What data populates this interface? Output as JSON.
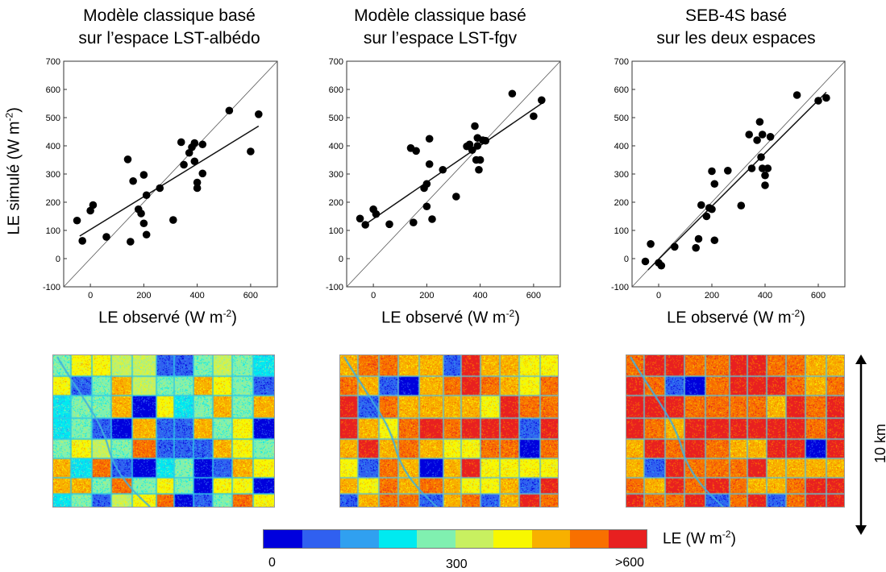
{
  "panels": [
    {
      "title_line1": "Modèle classique basé",
      "title_line2": "sur l’espace LST-albédo",
      "xlabel": "LE observé (W m",
      "xlabel_sup": "-2",
      "xlabel_end": ")"
    },
    {
      "title_line1": "Modèle classique basé",
      "title_line2": "sur l’espace LST-fgv",
      "xlabel": "LE observé (W m",
      "xlabel_sup": "-2",
      "xlabel_end": ")"
    },
    {
      "title_line1": "SEB-4S basé",
      "title_line2": "sur les deux espaces",
      "xlabel": "LE observé (W m",
      "xlabel_sup": "-2",
      "xlabel_end": ")"
    }
  ],
  "ylabel": "LE simulé (W m",
  "ylabel_sup": "-2",
  "ylabel_end": ")",
  "scale_label": "10 km",
  "colorbar": {
    "label": "LE (W m",
    "label_sup": "-2",
    "label_end": ")",
    "ticks": [
      "0",
      "300",
      ">600"
    ],
    "colors": [
      "#0000dd",
      "#3060f0",
      "#30a0f0",
      "#00eaf0",
      "#80f0b0",
      "#c8f060",
      "#f8f800",
      "#f8b000",
      "#f87000",
      "#e82020"
    ]
  },
  "chart_data": [
    {
      "type": "scatter",
      "title": "Modèle classique basé sur l’espace LST-albédo",
      "xlabel": "LE observé (W m-2)",
      "ylabel": "LE simulé (W m-2)",
      "xlim": [
        -100,
        700
      ],
      "ylim": [
        -100,
        700
      ],
      "xticks": [
        0,
        200,
        400,
        600
      ],
      "yticks": [
        -100,
        0,
        100,
        200,
        300,
        400,
        500,
        600,
        700
      ],
      "one_to_one_line": true,
      "regression": {
        "x0": -40,
        "y0": 80,
        "x1": 630,
        "y1": 470
      },
      "points": [
        [
          -50,
          135
        ],
        [
          -30,
          63
        ],
        [
          0,
          170
        ],
        [
          10,
          190
        ],
        [
          60,
          77
        ],
        [
          140,
          352
        ],
        [
          150,
          60
        ],
        [
          160,
          275
        ],
        [
          180,
          175
        ],
        [
          190,
          160
        ],
        [
          200,
          125
        ],
        [
          200,
          297
        ],
        [
          210,
          225
        ],
        [
          210,
          85
        ],
        [
          260,
          250
        ],
        [
          310,
          137
        ],
        [
          340,
          413
        ],
        [
          350,
          333
        ],
        [
          370,
          375
        ],
        [
          380,
          395
        ],
        [
          390,
          410
        ],
        [
          390,
          345
        ],
        [
          400,
          270
        ],
        [
          400,
          250
        ],
        [
          420,
          405
        ],
        [
          420,
          302
        ],
        [
          520,
          525
        ],
        [
          600,
          380
        ],
        [
          630,
          512
        ]
      ]
    },
    {
      "type": "scatter",
      "title": "Modèle classique basé sur l’espace LST-fgv",
      "xlabel": "LE observé (W m-2)",
      "ylabel": "LE simulé (W m-2)",
      "xlim": [
        -100,
        700
      ],
      "ylim": [
        -100,
        700
      ],
      "xticks": [
        0,
        200,
        400,
        600
      ],
      "yticks": [
        -100,
        0,
        100,
        200,
        300,
        400,
        500,
        600,
        700
      ],
      "one_to_one_line": true,
      "regression": {
        "x0": -40,
        "y0": 115,
        "x1": 630,
        "y1": 550
      },
      "points": [
        [
          -50,
          142
        ],
        [
          -30,
          120
        ],
        [
          0,
          175
        ],
        [
          10,
          158
        ],
        [
          60,
          122
        ],
        [
          140,
          392
        ],
        [
          150,
          128
        ],
        [
          160,
          382
        ],
        [
          190,
          250
        ],
        [
          200,
          265
        ],
        [
          200,
          185
        ],
        [
          210,
          425
        ],
        [
          210,
          335
        ],
        [
          220,
          140
        ],
        [
          260,
          315
        ],
        [
          310,
          220
        ],
        [
          350,
          398
        ],
        [
          360,
          405
        ],
        [
          370,
          385
        ],
        [
          380,
          470
        ],
        [
          385,
          350
        ],
        [
          390,
          428
        ],
        [
          390,
          400
        ],
        [
          395,
          315
        ],
        [
          400,
          350
        ],
        [
          410,
          420
        ],
        [
          420,
          418
        ],
        [
          520,
          585
        ],
        [
          600,
          505
        ],
        [
          630,
          562
        ]
      ]
    },
    {
      "type": "scatter",
      "title": "SEB-4S basé sur les deux espaces",
      "xlabel": "LE observé (W m-2)",
      "ylabel": "LE simulé (W m-2)",
      "xlim": [
        -100,
        700
      ],
      "ylim": [
        -100,
        700
      ],
      "xticks": [
        0,
        200,
        400,
        600
      ],
      "yticks": [
        -100,
        0,
        100,
        200,
        300,
        400,
        500,
        600,
        700
      ],
      "one_to_one_line": true,
      "regression": {
        "x0": -40,
        "y0": -40,
        "x1": 630,
        "y1": 590
      },
      "points": [
        [
          -50,
          -10
        ],
        [
          -30,
          52
        ],
        [
          0,
          -15
        ],
        [
          10,
          -25
        ],
        [
          60,
          42
        ],
        [
          140,
          38
        ],
        [
          150,
          70
        ],
        [
          160,
          190
        ],
        [
          180,
          150
        ],
        [
          190,
          180
        ],
        [
          200,
          175
        ],
        [
          200,
          310
        ],
        [
          210,
          265
        ],
        [
          210,
          65
        ],
        [
          260,
          312
        ],
        [
          310,
          188
        ],
        [
          340,
          440
        ],
        [
          350,
          320
        ],
        [
          370,
          420
        ],
        [
          380,
          485
        ],
        [
          385,
          360
        ],
        [
          390,
          440
        ],
        [
          390,
          320
        ],
        [
          400,
          260
        ],
        [
          400,
          295
        ],
        [
          410,
          320
        ],
        [
          420,
          432
        ],
        [
          520,
          580
        ],
        [
          600,
          560
        ],
        [
          630,
          570
        ]
      ]
    }
  ]
}
